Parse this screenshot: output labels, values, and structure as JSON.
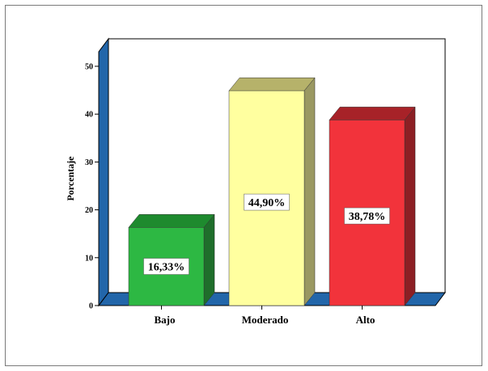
{
  "chart_data": {
    "type": "bar",
    "title": "",
    "xlabel": "",
    "ylabel": "Porcentaje",
    "ylim": [
      0,
      50
    ],
    "yticks": [
      0,
      10,
      20,
      30,
      40,
      50
    ],
    "grid": false,
    "categories": [
      "Bajo",
      "Moderado",
      "Alto"
    ],
    "values": [
      16.33,
      44.9,
      38.78
    ],
    "data_labels": [
      "16,33%",
      "44,90%",
      "38,78%"
    ],
    "colors": {
      "front": [
        "#2db843",
        "#ffff9f",
        "#f2333b"
      ],
      "top": [
        "#1e8a2e",
        "#b6b26a",
        "#a72228"
      ],
      "side": [
        "#1f6e2b",
        "#9a9862",
        "#8c1f24"
      ],
      "wall": "#2266aa",
      "wall_edge": "#1a4f86"
    }
  }
}
